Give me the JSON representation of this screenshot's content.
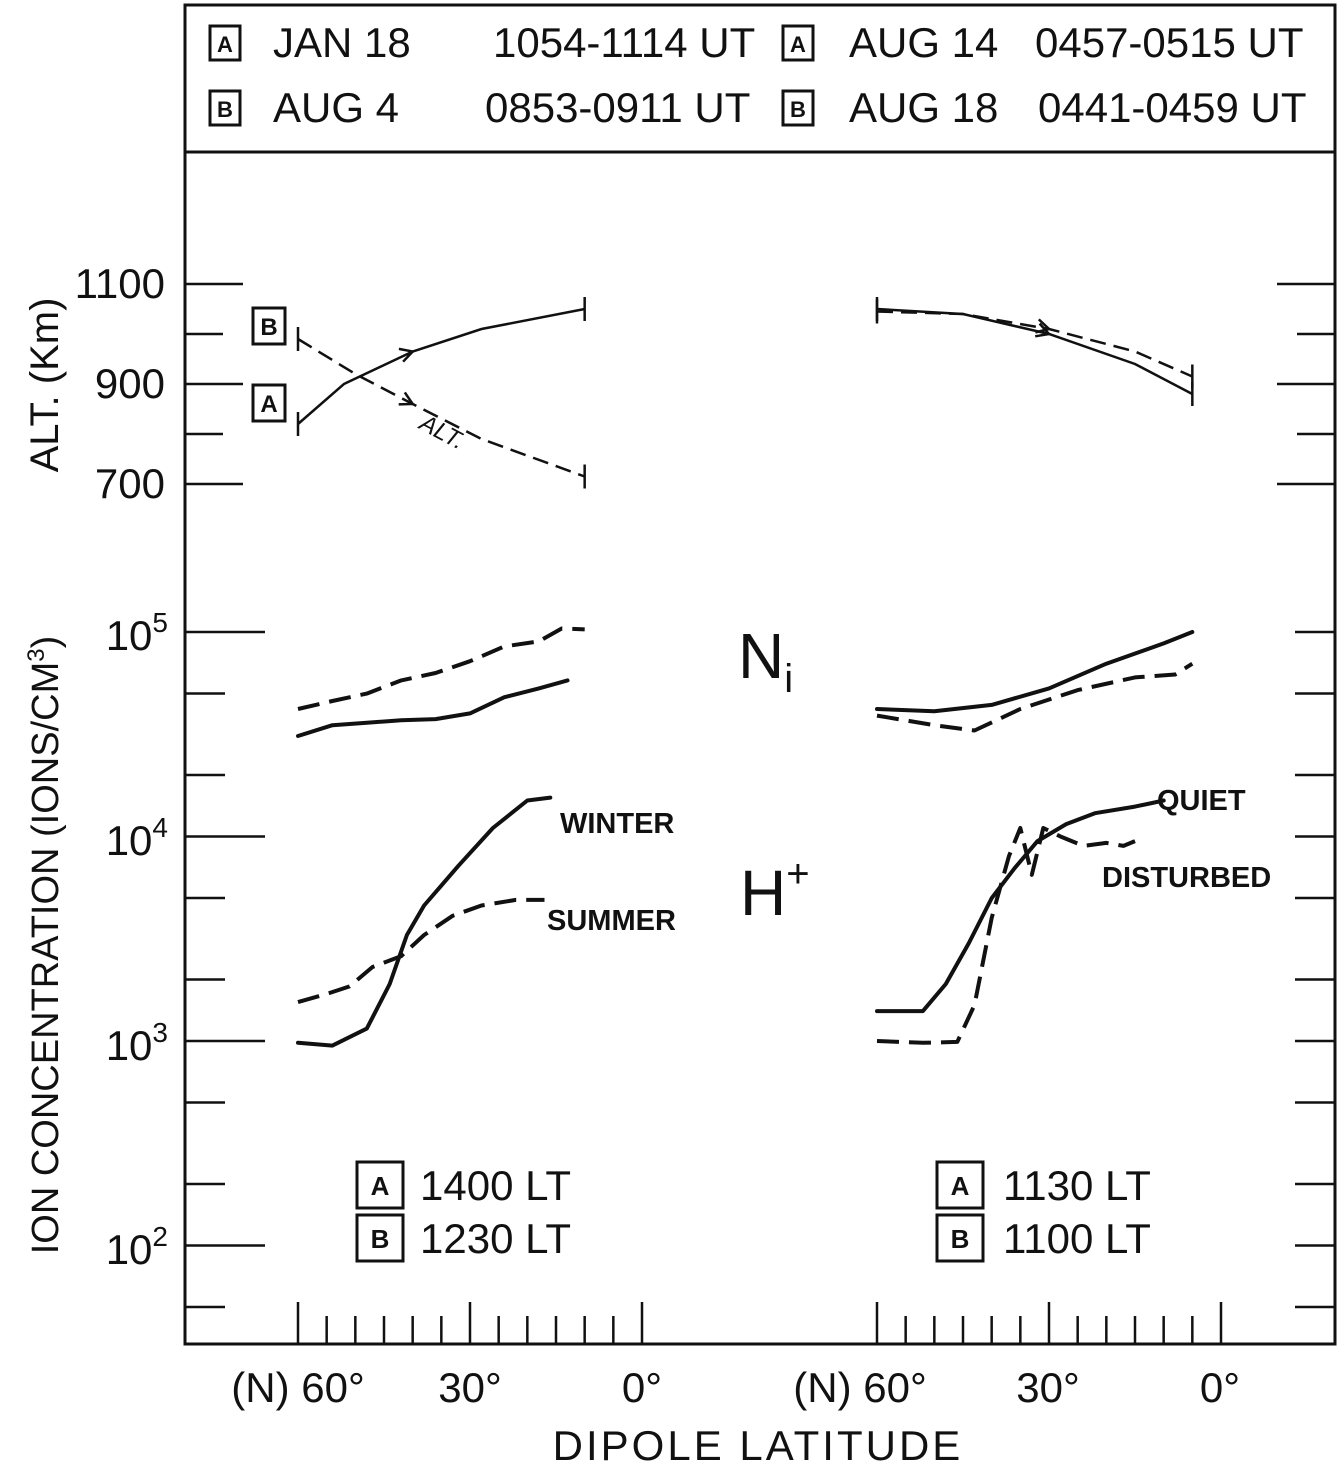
{
  "legend": {
    "rows": [
      {
        "box": "A",
        "date": "JAN 18",
        "time": "1054-1114 UT",
        "box2": "A",
        "date2": "AUG 14",
        "time2": "0457-0515 UT"
      },
      {
        "box": "B",
        "date": "AUG 4",
        "time": "0853-0911 UT",
        "box2": "B",
        "date2": "AUG 18",
        "time2": "0441-0459 UT"
      }
    ]
  },
  "axes": {
    "alt_label": "ALT. (Km)",
    "ion_label": "ION CONCENTRATION (IONS/CM",
    "ion_label_sup": "3",
    "ion_label_end": ")",
    "xlabel": "DIPOLE LATITUDE",
    "alt_ticks": [
      "1100",
      "900",
      "700"
    ],
    "ion_ticks": [
      {
        "base": "10",
        "exp": "5"
      },
      {
        "base": "10",
        "exp": "4"
      },
      {
        "base": "10",
        "exp": "3"
      },
      {
        "base": "10",
        "exp": "2"
      }
    ],
    "x_ticks_left": [
      "(N) 60°",
      "30°",
      "0°"
    ],
    "x_ticks_right": [
      "(N) 60°",
      "30°",
      "0°"
    ]
  },
  "labels": {
    "ni_main": "N",
    "ni_sub": "i",
    "hp_main": "H",
    "hp_sup": "+",
    "winter": "WINTER",
    "summer": "SUMMER",
    "quiet": "QUIET",
    "disturbed": "DISTURBED",
    "alt_curve": "ALT.",
    "left_orbit_a": "A",
    "left_orbit_b": "B"
  },
  "local_time": {
    "left": [
      {
        "box": "A",
        "text": "1400 LT"
      },
      {
        "box": "B",
        "text": "1230 LT"
      }
    ],
    "right": [
      {
        "box": "A",
        "text": "1130 LT"
      },
      {
        "box": "B",
        "text": "1100 LT"
      }
    ]
  },
  "chart_data": {
    "type": "line",
    "x_unit": "dipole latitude (deg N)",
    "panels": [
      {
        "side": "left",
        "xlim": [
          60,
          0
        ],
        "altitude_km": [
          {
            "name": "A",
            "style": "solid",
            "points": [
              [
                60,
                820
              ],
              [
                52,
                900
              ],
              [
                40,
                965
              ],
              [
                28,
                1010
              ],
              [
                10,
                1050
              ]
            ]
          },
          {
            "name": "B",
            "style": "dashed",
            "points": [
              [
                60,
                990
              ],
              [
                50,
                920
              ],
              [
                40,
                860
              ],
              [
                28,
                790
              ],
              [
                10,
                715
              ]
            ]
          }
        ],
        "Ni": [
          {
            "name": "A",
            "style": "solid",
            "points": [
              [
                60,
                31000
              ],
              [
                54,
                35000
              ],
              [
                48,
                36000
              ],
              [
                42,
                37000
              ],
              [
                36,
                37500
              ],
              [
                30,
                40000
              ],
              [
                24,
                48000
              ],
              [
                18,
                53000
              ],
              [
                13,
                58000
              ]
            ]
          },
          {
            "name": "B",
            "style": "dashed",
            "points": [
              [
                60,
                42000
              ],
              [
                54,
                46000
              ],
              [
                48,
                50000
              ],
              [
                42,
                58000
              ],
              [
                36,
                63000
              ],
              [
                30,
                72000
              ],
              [
                24,
                85000
              ],
              [
                18,
                90000
              ],
              [
                14,
                104000
              ],
              [
                10,
                103000
              ]
            ]
          }
        ],
        "H+": [
          {
            "name": "WINTER",
            "style": "solid",
            "points": [
              [
                60,
                980
              ],
              [
                54,
                950
              ],
              [
                48,
                1150
              ],
              [
                44,
                1900
              ],
              [
                41,
                3300
              ],
              [
                38,
                4600
              ],
              [
                32,
                7200
              ],
              [
                26,
                11000
              ],
              [
                20,
                15000
              ],
              [
                16,
                15500
              ]
            ]
          },
          {
            "name": "SUMMER",
            "style": "dashed",
            "points": [
              [
                60,
                1550
              ],
              [
                55,
                1700
              ],
              [
                51,
                1850
              ],
              [
                47,
                2300
              ],
              [
                42,
                2600
              ],
              [
                38,
                3300
              ],
              [
                33,
                4100
              ],
              [
                28,
                4600
              ],
              [
                22,
                4900
              ],
              [
                17,
                4900
              ]
            ]
          }
        ]
      },
      {
        "side": "right",
        "xlim": [
          60,
          0
        ],
        "altitude_km": [
          {
            "name": "A",
            "style": "solid",
            "points": [
              [
                60,
                1050
              ],
              [
                45,
                1040
              ],
              [
                30,
                1000
              ],
              [
                15,
                940
              ],
              [
                5,
                880
              ]
            ]
          },
          {
            "name": "B",
            "style": "dashed",
            "points": [
              [
                60,
                1045
              ],
              [
                45,
                1040
              ],
              [
                30,
                1010
              ],
              [
                15,
                965
              ],
              [
                5,
                915
              ]
            ]
          }
        ],
        "Ni": [
          {
            "name": "A",
            "style": "solid",
            "points": [
              [
                60,
                42000
              ],
              [
                50,
                41000
              ],
              [
                40,
                44000
              ],
              [
                30,
                53000
              ],
              [
                20,
                70000
              ],
              [
                10,
                88000
              ],
              [
                5,
                100000
              ]
            ]
          },
          {
            "name": "B",
            "style": "dashed",
            "points": [
              [
                60,
                39000
              ],
              [
                50,
                35000
              ],
              [
                43,
                33000
              ],
              [
                35,
                42000
              ],
              [
                25,
                52000
              ],
              [
                15,
                60000
              ],
              [
                8,
                62000
              ],
              [
                5,
                70000
              ]
            ]
          }
        ],
        "H+": [
          {
            "name": "QUIET",
            "style": "solid",
            "points": [
              [
                60,
                1400
              ],
              [
                52,
                1400
              ],
              [
                48,
                1900
              ],
              [
                44,
                3000
              ],
              [
                40,
                5000
              ],
              [
                36,
                7000
              ],
              [
                32,
                9500
              ],
              [
                27,
                11500
              ],
              [
                22,
                13000
              ],
              [
                15,
                14000
              ],
              [
                10,
                15000
              ]
            ]
          },
          {
            "name": "DISTURBED",
            "style": "dashed",
            "points": [
              [
                60,
                1000
              ],
              [
                52,
                980
              ],
              [
                46,
                990
              ],
              [
                43,
                1500
              ],
              [
                40,
                4000
              ],
              [
                37,
                8000
              ],
              [
                35,
                11000
              ],
              [
                33,
                6500
              ],
              [
                31,
                11000
              ],
              [
                28,
                10000
              ],
              [
                24,
                9000
              ],
              [
                20,
                9300
              ],
              [
                17,
                9000
              ],
              [
                15,
                9500
              ]
            ]
          }
        ]
      }
    ]
  }
}
